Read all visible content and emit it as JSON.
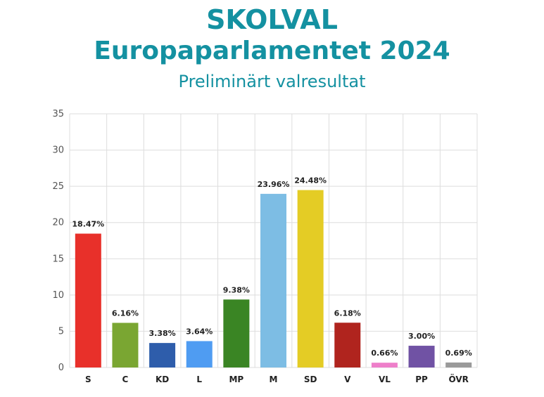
{
  "title_line1": "SKOLVAL",
  "title_line2": "Europaparlamentet 2024",
  "subtitle": "Preliminärt valresultat",
  "chart_data": {
    "type": "bar",
    "categories": [
      "S",
      "C",
      "KD",
      "L",
      "MP",
      "M",
      "SD",
      "V",
      "VL",
      "PP",
      "ÖVR"
    ],
    "values": [
      18.47,
      6.16,
      3.38,
      3.64,
      9.38,
      23.96,
      24.48,
      6.18,
      0.66,
      3.0,
      0.69
    ],
    "data_labels": [
      "18.47%",
      "6.16%",
      "3.38%",
      "3.64%",
      "9.38%",
      "23.96%",
      "24.48%",
      "6.18%",
      "0.66%",
      "3.00%",
      "0.69%"
    ],
    "colors": [
      "#e8302a",
      "#7aa632",
      "#2e5dab",
      "#4f9cf2",
      "#3a8524",
      "#7dbde4",
      "#e4cc25",
      "#b0241e",
      "#ee7fca",
      "#7052a4",
      "#9a9a9a"
    ],
    "ylim": [
      0,
      35
    ],
    "yticks": [
      0,
      5,
      10,
      15,
      20,
      25,
      30,
      35
    ],
    "grid": true,
    "xlabel": "",
    "ylabel": ""
  }
}
